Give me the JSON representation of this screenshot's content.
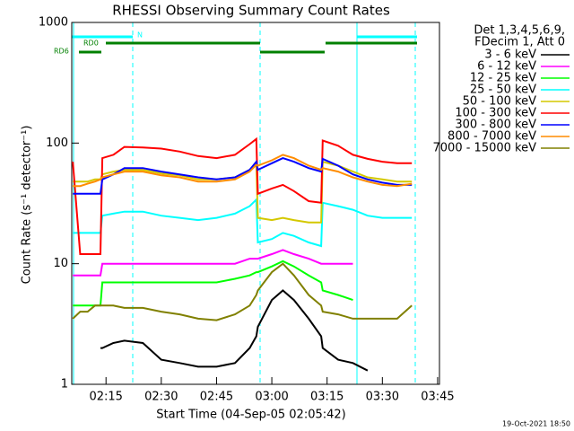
{
  "chart_data": {
    "type": "line",
    "title": "RHESSI Observing Summary Count Rates",
    "xlabel": "Start Time (04-Sep-05 02:05:42)",
    "ylabel": "Count Rate (s⁻¹ detector⁻¹)",
    "legend_header": [
      "Det 1,3,4,5,6,9,",
      "FDecim 1, Att 0"
    ],
    "annotations": [
      "N",
      "RD0",
      "RD6"
    ],
    "footer": "19-Oct-2021 18:50",
    "log_y": true,
    "xlim": [
      5.7,
      105.5
    ],
    "xticks": [
      {
        "value": 15,
        "label": "02:15"
      },
      {
        "value": 30,
        "label": "02:30"
      },
      {
        "value": 45,
        "label": "02:45"
      },
      {
        "value": 60,
        "label": "03:00"
      },
      {
        "value": 75,
        "label": "03:15"
      },
      {
        "value": 90,
        "label": "03:30"
      },
      {
        "value": 105,
        "label": "03:45"
      }
    ],
    "ylim": [
      1,
      1000
    ],
    "yticks": [
      1,
      10,
      100,
      1000
    ],
    "x": [
      6,
      8,
      10,
      12,
      13.5,
      14,
      17,
      20,
      25,
      30,
      35,
      40,
      45,
      50,
      54,
      55.8,
      56.2,
      60,
      63,
      66,
      70,
      73.4,
      73.8,
      78,
      82,
      86,
      90,
      94,
      98
    ],
    "series": [
      {
        "name": "3 - 6 keV",
        "color": "#000000",
        "values": [
          null,
          null,
          null,
          null,
          2,
          2,
          2.2,
          2.3,
          2.2,
          1.6,
          1.5,
          1.4,
          1.4,
          1.5,
          2,
          2.5,
          3,
          5,
          6,
          5,
          3.5,
          2.5,
          2,
          1.6,
          1.5,
          1.3,
          null,
          null,
          null
        ]
      },
      {
        "name": "6 - 12 keV",
        "color": "#ff00ff",
        "values": [
          8,
          8,
          8,
          8,
          8,
          10,
          10,
          10,
          10,
          10,
          10,
          10,
          10,
          10,
          11,
          11,
          11,
          12,
          13,
          12,
          11,
          10,
          10,
          10,
          10,
          null,
          null,
          null,
          null
        ]
      },
      {
        "name": "12 - 25 keV",
        "color": "#00ff00",
        "values": [
          4.5,
          4.5,
          4.5,
          4.5,
          4.5,
          7,
          7,
          7,
          7,
          7,
          7,
          7,
          7,
          7.5,
          8,
          8.5,
          8.5,
          9.5,
          10.5,
          9.5,
          8,
          7,
          6,
          5.5,
          5,
          null,
          null,
          null,
          null
        ]
      },
      {
        "name": "25 - 50 keV",
        "color": "#00ffff",
        "values": [
          18,
          18,
          18,
          18,
          18,
          25,
          26,
          27,
          27,
          25,
          24,
          23,
          24,
          26,
          30,
          34,
          15,
          16,
          18,
          17,
          15,
          14,
          32,
          30,
          28,
          25,
          24,
          24,
          24
        ]
      },
      {
        "name": "50 - 100 keV",
        "color": "#d4c800",
        "values": [
          48,
          48,
          48,
          50,
          50,
          55,
          58,
          60,
          60,
          56,
          54,
          50,
          50,
          52,
          60,
          68,
          24,
          23,
          24,
          23,
          22,
          22,
          70,
          65,
          58,
          52,
          50,
          48,
          48
        ]
      },
      {
        "name": "100 - 300 keV",
        "color": "#ff0000",
        "values": [
          70,
          12,
          12,
          12,
          12,
          75,
          80,
          93,
          92,
          90,
          85,
          78,
          75,
          80,
          98,
          108,
          38,
          42,
          45,
          40,
          33,
          32,
          105,
          95,
          80,
          74,
          70,
          68,
          68
        ]
      },
      {
        "name": "300 - 800 keV",
        "color": "#0000ff",
        "values": [
          38,
          38,
          38,
          38,
          38,
          50,
          55,
          62,
          62,
          58,
          55,
          52,
          50,
          52,
          60,
          70,
          60,
          68,
          75,
          70,
          62,
          58,
          74,
          65,
          55,
          50,
          47,
          45,
          45
        ]
      },
      {
        "name": "800 - 7000 keV",
        "color": "#ff8c00",
        "values": [
          44,
          44,
          46,
          48,
          50,
          52,
          55,
          58,
          58,
          54,
          52,
          48,
          48,
          50,
          58,
          66,
          65,
          72,
          80,
          75,
          65,
          60,
          62,
          58,
          52,
          48,
          45,
          44,
          46
        ]
      },
      {
        "name": "7000 - 15000 keV",
        "color": "#808000",
        "values": [
          3.5,
          4,
          4,
          4.5,
          4.5,
          4.5,
          4.5,
          4.3,
          4.3,
          4,
          3.8,
          3.5,
          3.4,
          3.8,
          4.5,
          5.5,
          6,
          8.5,
          10,
          8,
          5.5,
          4.5,
          4,
          3.8,
          3.5,
          3.5,
          3.5,
          3.5,
          4.5
        ]
      }
    ]
  }
}
